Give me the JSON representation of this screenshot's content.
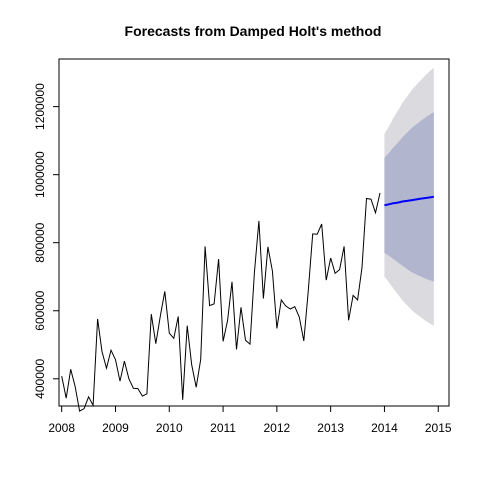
{
  "chart_data": {
    "type": "line",
    "title": "Forecasts from Damped Holt's method",
    "xlabel": "",
    "ylabel": "",
    "xlim": [
      2007.95,
      2015.2
    ],
    "ylim": [
      320000,
      1340000
    ],
    "x_ticks": [
      2008,
      2009,
      2010,
      2011,
      2012,
      2013,
      2014,
      2015
    ],
    "y_ticks": [
      400000,
      600000,
      800000,
      1000000,
      1200000
    ],
    "history": {
      "start": 2008,
      "frequency": 12,
      "values": [
        408000,
        343000,
        428000,
        378000,
        305000,
        312000,
        347000,
        322000,
        576000,
        480000,
        431000,
        484000,
        456000,
        393000,
        452000,
        400000,
        372000,
        371000,
        349000,
        356000,
        590000,
        503000,
        584000,
        657000,
        534000,
        519000,
        583000,
        338000,
        556000,
        441000,
        375000,
        457000,
        789000,
        615000,
        620000,
        752000,
        510000,
        572000,
        685000,
        486000,
        610000,
        513000,
        502000,
        712000,
        864000,
        636000,
        788000,
        717000,
        548000,
        632000,
        614000,
        605000,
        612000,
        581000,
        511000,
        656000,
        826000,
        825000,
        855000,
        690000,
        755000,
        710000,
        721000,
        789000,
        572000,
        645000,
        632000,
        727000,
        930000,
        928000,
        888000,
        946000
      ],
      "color": "#000000"
    },
    "forecast": {
      "start": 2014,
      "frequency": 12,
      "mean": [
        910000,
        913000,
        916000,
        918000,
        921000,
        923000,
        925000,
        927000,
        929000,
        931000,
        933000,
        935000
      ],
      "lo80": [
        770000,
        762000,
        752000,
        742000,
        732000,
        723000,
        714000,
        707000,
        701000,
        695000,
        690000,
        686000
      ],
      "hi80": [
        1050000,
        1064000,
        1080000,
        1094000,
        1110000,
        1123000,
        1136000,
        1147000,
        1157000,
        1167000,
        1176000,
        1184000
      ],
      "lo95": [
        700000,
        684000,
        665000,
        648000,
        631000,
        617000,
        603000,
        592000,
        582000,
        572000,
        563000,
        556000
      ],
      "hi95": [
        1120000,
        1142000,
        1167000,
        1188000,
        1211000,
        1229000,
        1247000,
        1262000,
        1276000,
        1290000,
        1303000,
        1314000
      ],
      "mean_color": "#0000ff",
      "band80_color": "#b1b5ce",
      "band95_color": "#dbdbdf"
    },
    "grid": false,
    "legend": "none"
  }
}
